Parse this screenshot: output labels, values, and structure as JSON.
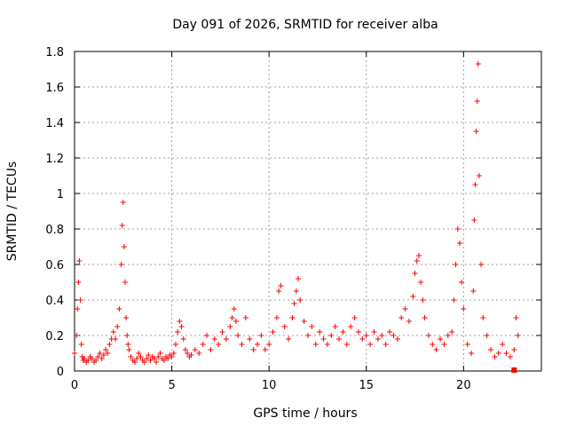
{
  "chart_data": {
    "type": "scatter",
    "title": "Day 091 of 2026, SRMTID for receiver alba",
    "xlabel": "GPS time / hours",
    "ylabel": "SRMTID / TECUs",
    "xlim": [
      0,
      24
    ],
    "ylim": [
      0,
      1.8
    ],
    "xticks": [
      0,
      5,
      10,
      15,
      20
    ],
    "yticks": [
      0,
      0.2,
      0.4,
      0.6,
      0.8,
      1.0,
      1.2,
      1.4,
      1.6,
      1.8
    ],
    "xtick_labels": [
      "0",
      "5",
      "10",
      "15",
      "20"
    ],
    "ytick_labels": [
      "0",
      "0.2",
      "0.4",
      "0.6",
      "0.8",
      "1",
      "1.2",
      "1.4",
      "1.6",
      "1.8"
    ],
    "grid": true,
    "marker": "+",
    "color": "#ff0000",
    "series": [
      {
        "name": "SRMTID",
        "x": [
          0.0,
          0.1,
          0.15,
          0.2,
          0.25,
          0.3,
          0.35,
          0.4,
          0.45,
          0.5,
          0.6,
          0.7,
          0.8,
          0.9,
          1.0,
          1.1,
          1.2,
          1.3,
          1.4,
          1.5,
          1.6,
          1.7,
          1.8,
          1.9,
          2.0,
          2.1,
          2.2,
          2.3,
          2.4,
          2.45,
          2.5,
          2.55,
          2.6,
          2.65,
          2.7,
          2.75,
          2.8,
          2.9,
          3.0,
          3.1,
          3.2,
          3.3,
          3.4,
          3.5,
          3.6,
          3.7,
          3.8,
          3.9,
          4.0,
          4.1,
          4.2,
          4.3,
          4.4,
          4.5,
          4.6,
          4.7,
          4.8,
          4.9,
          5.0,
          5.1,
          5.2,
          5.3,
          5.4,
          5.5,
          5.6,
          5.7,
          5.8,
          5.9,
          6.0,
          6.2,
          6.4,
          6.6,
          6.8,
          7.0,
          7.2,
          7.4,
          7.6,
          7.8,
          8.0,
          8.1,
          8.2,
          8.3,
          8.4,
          8.6,
          8.8,
          9.0,
          9.2,
          9.4,
          9.6,
          9.8,
          10.0,
          10.2,
          10.4,
          10.5,
          10.6,
          10.8,
          11.0,
          11.2,
          11.3,
          11.4,
          11.5,
          11.6,
          11.8,
          12.0,
          12.2,
          12.4,
          12.6,
          12.8,
          13.0,
          13.2,
          13.4,
          13.6,
          13.8,
          14.0,
          14.2,
          14.4,
          14.6,
          14.8,
          15.0,
          15.2,
          15.4,
          15.6,
          15.8,
          16.0,
          16.2,
          16.4,
          16.6,
          16.8,
          17.0,
          17.2,
          17.4,
          17.5,
          17.6,
          17.7,
          17.8,
          17.9,
          18.0,
          18.2,
          18.4,
          18.6,
          18.8,
          19.0,
          19.2,
          19.4,
          19.5,
          19.6,
          19.7,
          19.8,
          19.9,
          20.0,
          20.2,
          20.4,
          20.5,
          20.55,
          20.6,
          20.65,
          20.7,
          20.75,
          20.8,
          20.9,
          21.0,
          21.2,
          21.4,
          21.6,
          21.8,
          22.0,
          22.2,
          22.4,
          22.6,
          22.7,
          22.8
        ],
        "y": [
          0.1,
          0.2,
          0.35,
          0.5,
          0.62,
          0.4,
          0.15,
          0.08,
          0.06,
          0.07,
          0.05,
          0.06,
          0.08,
          0.07,
          0.05,
          0.06,
          0.08,
          0.1,
          0.07,
          0.09,
          0.12,
          0.1,
          0.15,
          0.18,
          0.22,
          0.18,
          0.25,
          0.35,
          0.6,
          0.82,
          0.95,
          0.7,
          0.5,
          0.3,
          0.2,
          0.15,
          0.12,
          0.08,
          0.06,
          0.05,
          0.07,
          0.1,
          0.08,
          0.06,
          0.05,
          0.07,
          0.09,
          0.06,
          0.08,
          0.07,
          0.05,
          0.08,
          0.1,
          0.07,
          0.06,
          0.08,
          0.07,
          0.09,
          0.08,
          0.1,
          0.15,
          0.22,
          0.28,
          0.25,
          0.18,
          0.12,
          0.1,
          0.08,
          0.09,
          0.12,
          0.1,
          0.15,
          0.2,
          0.12,
          0.18,
          0.15,
          0.22,
          0.18,
          0.25,
          0.3,
          0.35,
          0.28,
          0.2,
          0.15,
          0.3,
          0.18,
          0.12,
          0.15,
          0.2,
          0.12,
          0.15,
          0.22,
          0.3,
          0.45,
          0.48,
          0.25,
          0.18,
          0.3,
          0.38,
          0.45,
          0.52,
          0.4,
          0.28,
          0.2,
          0.25,
          0.15,
          0.22,
          0.18,
          0.15,
          0.2,
          0.25,
          0.18,
          0.22,
          0.15,
          0.25,
          0.3,
          0.22,
          0.18,
          0.2,
          0.15,
          0.22,
          0.18,
          0.2,
          0.15,
          0.22,
          0.2,
          0.18,
          0.3,
          0.35,
          0.28,
          0.42,
          0.55,
          0.62,
          0.65,
          0.5,
          0.4,
          0.3,
          0.2,
          0.15,
          0.12,
          0.18,
          0.15,
          0.2,
          0.22,
          0.4,
          0.6,
          0.8,
          0.72,
          0.5,
          0.35,
          0.15,
          0.1,
          0.45,
          0.85,
          1.05,
          1.35,
          1.52,
          1.73,
          1.1,
          0.6,
          0.3,
          0.2,
          0.12,
          0.08,
          0.1,
          0.15,
          0.1,
          0.08,
          0.12,
          0.3,
          0.2
        ]
      }
    ],
    "extra_markers": [
      {
        "shape": "square",
        "x": 22.6,
        "y": 0.0
      }
    ]
  }
}
